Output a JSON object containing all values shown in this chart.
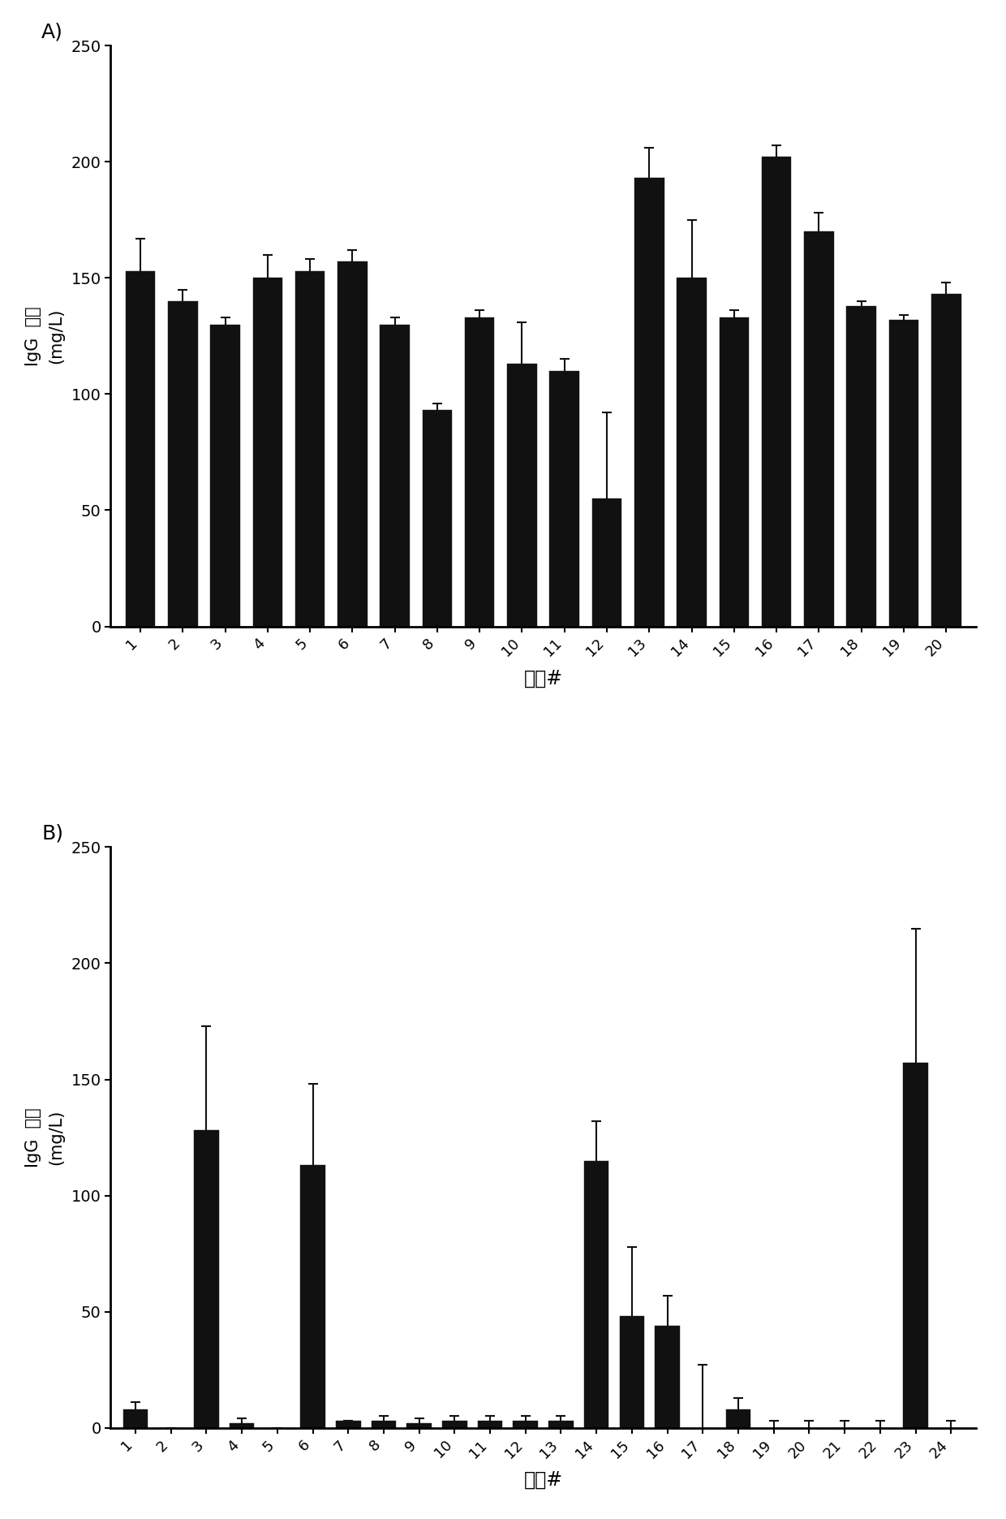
{
  "panel_A": {
    "values": [
      153,
      140,
      130,
      150,
      153,
      157,
      130,
      93,
      133,
      113,
      110,
      55,
      193,
      150,
      133,
      202,
      170,
      138,
      132,
      143
    ],
    "errors": [
      14,
      5,
      3,
      10,
      5,
      5,
      3,
      3,
      3,
      18,
      5,
      37,
      13,
      25,
      3,
      5,
      8,
      2,
      2,
      5
    ],
    "labels": [
      "1",
      "2",
      "3",
      "4",
      "5",
      "6",
      "7",
      "8",
      "9",
      "10",
      "11",
      "12",
      "13",
      "14",
      "15",
      "16",
      "17",
      "18",
      "19",
      "20"
    ],
    "ylabel_top": "(mg/L)",
    "ylabel_mid": "浓度",
    "ylabel_bot": "IgG",
    "xlabel": "克隆#",
    "ylim": [
      0,
      250
    ],
    "yticks": [
      0,
      50,
      100,
      150,
      200,
      250
    ],
    "panel_label": "A)"
  },
  "panel_B": {
    "values": [
      8,
      0,
      128,
      2,
      0,
      113,
      3,
      3,
      2,
      3,
      3,
      3,
      3,
      115,
      48,
      44,
      0,
      8,
      0,
      0,
      0,
      0,
      157,
      0
    ],
    "errors": [
      3,
      0,
      45,
      2,
      0,
      35,
      0,
      2,
      2,
      2,
      2,
      2,
      2,
      17,
      30,
      13,
      27,
      5,
      3,
      3,
      3,
      3,
      58,
      3
    ],
    "labels": [
      "1",
      "2",
      "3",
      "4",
      "5",
      "6",
      "7",
      "8",
      "9",
      "10",
      "11",
      "12",
      "13",
      "14",
      "15",
      "16",
      "17",
      "18",
      "19",
      "20",
      "21",
      "22",
      "23",
      "24"
    ],
    "ylabel_top": "(mg/L)",
    "ylabel_mid": "浓度",
    "ylabel_bot": "IgG",
    "xlabel": "克隆#",
    "ylim": [
      0,
      250
    ],
    "yticks": [
      0,
      50,
      100,
      150,
      200,
      250
    ],
    "panel_label": "B)"
  },
  "bar_color": "#111111",
  "bar_edge_color": "#111111",
  "background_color": "#ffffff",
  "error_color": "#111111",
  "tick_label_fontsize": 13,
  "axis_label_fontsize": 15,
  "panel_label_fontsize": 18,
  "xlabel_fontsize": 17
}
